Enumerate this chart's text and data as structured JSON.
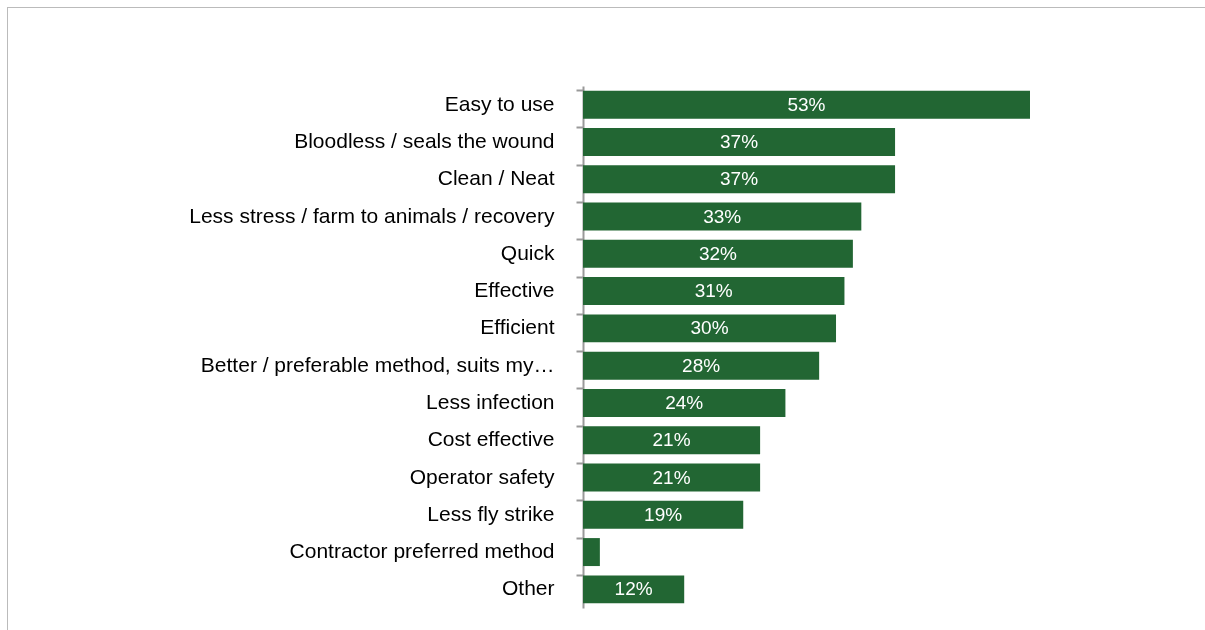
{
  "chart_data": {
    "type": "bar",
    "orientation": "horizontal",
    "categories": [
      "Easy to use",
      "Bloodless / seals the wound",
      "Clean / Neat",
      "Less stress / farm to animals / recovery",
      "Quick",
      "Effective",
      "Efficient",
      "Better / preferable method, suits my…",
      "Less infection",
      "Cost effective",
      "Operator safety",
      "Less fly strike",
      "Contractor preferred method",
      "Other"
    ],
    "values": [
      53,
      37,
      37,
      33,
      32,
      31,
      30,
      28,
      24,
      21,
      21,
      19,
      2,
      12
    ],
    "value_labels": [
      "53%",
      "37%",
      "37%",
      "33%",
      "32%",
      "31%",
      "30%",
      "28%",
      "24%",
      "21%",
      "21%",
      "19%",
      null,
      "12%"
    ],
    "color": "#226633"
  }
}
